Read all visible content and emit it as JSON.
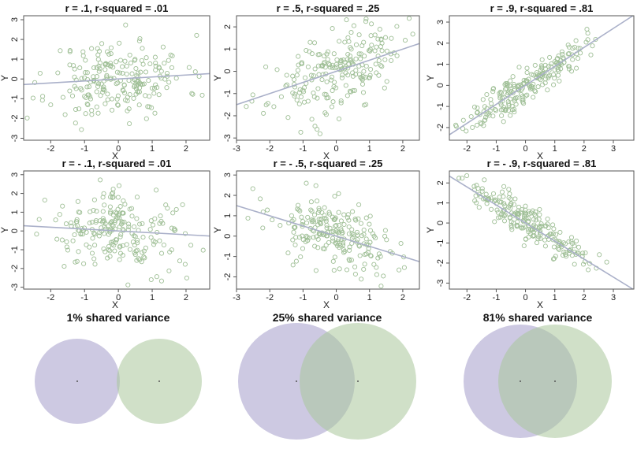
{
  "colors": {
    "point_stroke": "#9fbf96",
    "fit_line": "#aab0c9",
    "frame": "#555555",
    "circle_left": "#a49ccb",
    "circle_right": "#a9c79b"
  },
  "chart_data": [
    {
      "type": "scatter",
      "title": "r = .1, r-squared = .01",
      "xlabel": "X",
      "ylabel": "Y",
      "r": 0.1,
      "xlim": [
        -2.8,
        2.7
      ],
      "ylim": [
        -3.1,
        3.2
      ],
      "xticks": [
        -2,
        -1,
        0,
        1,
        2
      ],
      "yticks": [
        -3,
        -2,
        -1,
        0,
        1,
        2,
        3
      ],
      "n_points": 220,
      "x_spread": 1.0,
      "seed": 11
    },
    {
      "type": "scatter",
      "title": "r = .5, r-squared = .25",
      "xlabel": "X",
      "ylabel": "Y",
      "r": 0.5,
      "xlim": [
        -3.0,
        2.5
      ],
      "ylim": [
        -3.1,
        2.5
      ],
      "xticks": [
        -3,
        -2,
        -1,
        0,
        1,
        2
      ],
      "yticks": [
        -3,
        -2,
        -1,
        0,
        1,
        2
      ],
      "n_points": 220,
      "x_spread": 1.0,
      "seed": 23
    },
    {
      "type": "scatter",
      "title": "r = .9, r-squared = .81",
      "xlabel": "X",
      "ylabel": "Y",
      "r": 0.9,
      "xlim": [
        -2.6,
        3.7
      ],
      "ylim": [
        -2.6,
        3.3
      ],
      "xticks": [
        -2,
        -1,
        0,
        1,
        2,
        3
      ],
      "yticks": [
        -2,
        -1,
        0,
        1,
        2,
        3
      ],
      "n_points": 220,
      "x_spread": 1.0,
      "seed": 37
    },
    {
      "type": "scatter",
      "title": "r = - .1, r-squared = .01",
      "xlabel": "X",
      "ylabel": "Y",
      "r": -0.1,
      "xlim": [
        -2.8,
        2.7
      ],
      "ylim": [
        -3.1,
        3.2
      ],
      "xticks": [
        -2,
        -1,
        0,
        1,
        2
      ],
      "yticks": [
        -3,
        -2,
        -1,
        0,
        1,
        2,
        3
      ],
      "n_points": 220,
      "x_spread": 1.0,
      "seed": 41
    },
    {
      "type": "scatter",
      "title": "r = - .5, r-squared = .25",
      "xlabel": "X",
      "ylabel": "Y",
      "r": -0.5,
      "xlim": [
        -3.0,
        2.5
      ],
      "ylim": [
        -2.6,
        3.2
      ],
      "xticks": [
        -3,
        -2,
        -1,
        0,
        1,
        2
      ],
      "yticks": [
        -2,
        -1,
        0,
        1,
        2,
        3
      ],
      "n_points": 220,
      "x_spread": 1.0,
      "seed": 53
    },
    {
      "type": "scatter",
      "title": "r = - .9, r-squared = .81",
      "xlabel": "X",
      "ylabel": "Y",
      "r": -0.9,
      "xlim": [
        -2.6,
        3.7
      ],
      "ylim": [
        -3.3,
        2.6
      ],
      "xticks": [
        -2,
        -1,
        0,
        1,
        2,
        3
      ],
      "yticks": [
        -3,
        -2,
        -1,
        0,
        1,
        2
      ],
      "n_points": 220,
      "x_spread": 1.0,
      "seed": 67
    }
  ],
  "venn": [
    {
      "title": "1% shared variance",
      "shared_variance": 0.01
    },
    {
      "title": "25% shared variance",
      "shared_variance": 0.25
    },
    {
      "title": "81% shared variance",
      "shared_variance": 0.81
    }
  ]
}
